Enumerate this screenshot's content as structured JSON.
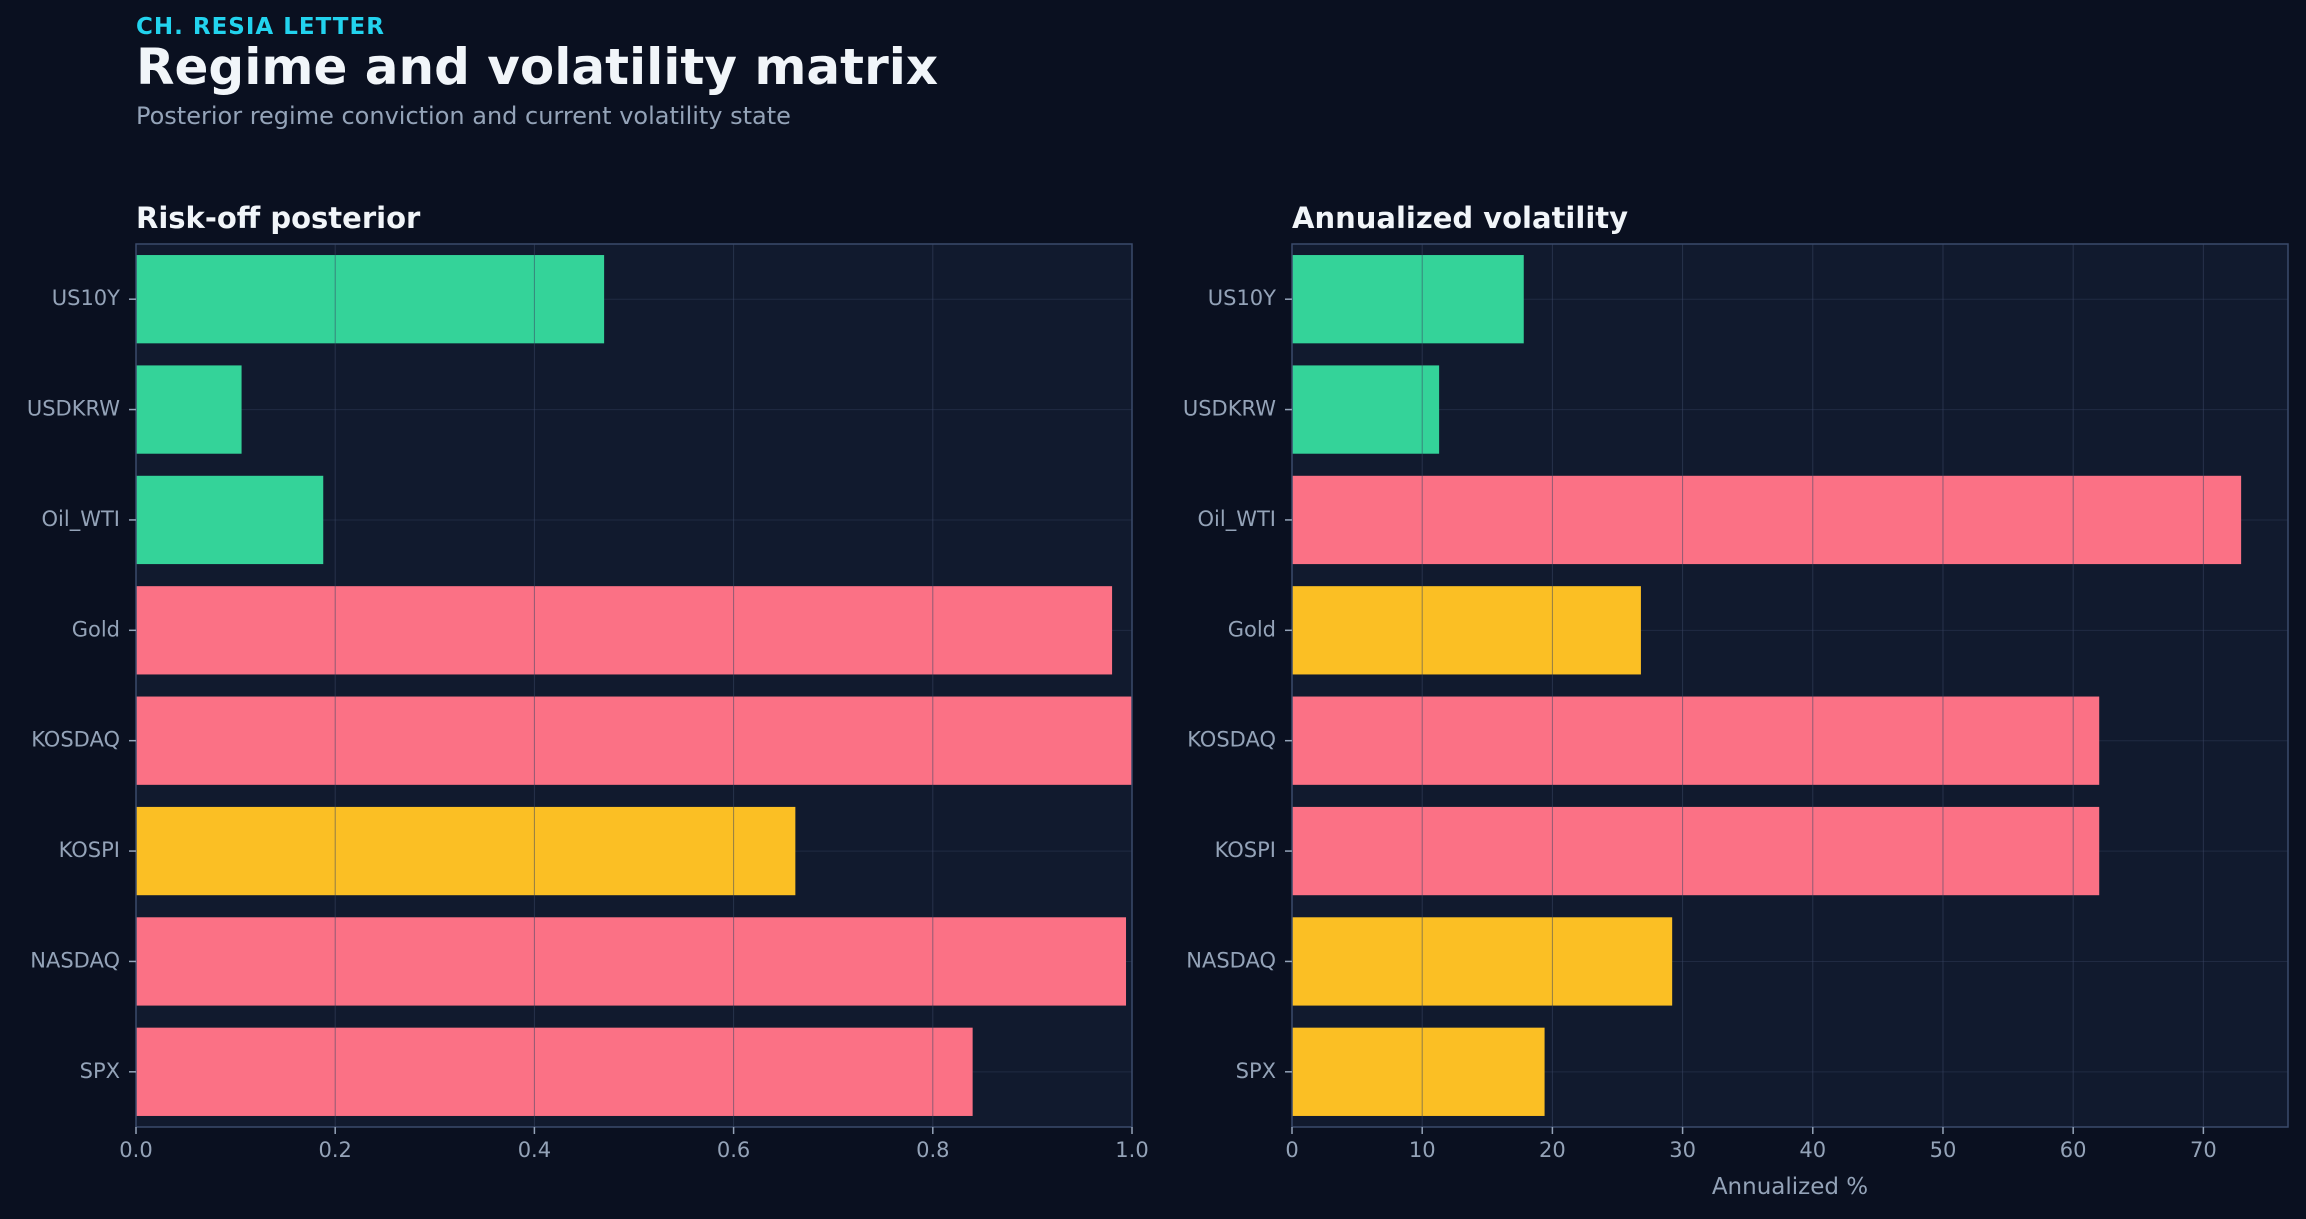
{
  "header": {
    "eyebrow": "CH. RESIA LETTER",
    "title": "Regime and volatility matrix",
    "subtitle": "Posterior regime conviction and current volatility state"
  },
  "colors": {
    "green": "#34d399",
    "red": "#fb7185",
    "yellow": "#fbbf24",
    "page_bg": "#0a1020",
    "panel_bg": "#111a2e",
    "grid": "#2a3550"
  },
  "chart_data": [
    {
      "type": "bar",
      "orientation": "horizontal",
      "title": "Risk-off posterior",
      "xlabel": "",
      "ylabel": "",
      "xlim": [
        0,
        1.0
      ],
      "xticks": [
        "0.0",
        "0.2",
        "0.4",
        "0.6",
        "0.8",
        "1.0"
      ],
      "xtick_values": [
        0,
        0.2,
        0.4,
        0.6,
        0.8,
        1.0
      ],
      "grid": true,
      "categories": [
        "US10Y",
        "USDKRW",
        "Oil_WTI",
        "Gold",
        "KOSDAQ",
        "KOSPI",
        "NASDAQ",
        "SPX"
      ],
      "values": [
        0.47,
        0.106,
        0.188,
        0.98,
        1.0,
        0.662,
        0.994,
        0.84
      ],
      "bar_colors": [
        "green",
        "green",
        "green",
        "red",
        "red",
        "yellow",
        "red",
        "red"
      ]
    },
    {
      "type": "bar",
      "orientation": "horizontal",
      "title": "Annualized volatility",
      "xlabel": "Annualized %",
      "ylabel": "",
      "xlim": [
        0,
        76.5
      ],
      "xticks": [
        "0",
        "10",
        "20",
        "30",
        "40",
        "50",
        "60",
        "70"
      ],
      "xtick_values": [
        0,
        10,
        20,
        30,
        40,
        50,
        60,
        70
      ],
      "grid": true,
      "categories": [
        "US10Y",
        "USDKRW",
        "Oil_WTI",
        "Gold",
        "KOSDAQ",
        "KOSPI",
        "NASDAQ",
        "SPX"
      ],
      "values": [
        17.8,
        11.3,
        72.9,
        26.8,
        62.0,
        62.0,
        29.2,
        19.4
      ],
      "bar_colors": [
        "green",
        "green",
        "red",
        "yellow",
        "red",
        "red",
        "yellow",
        "yellow"
      ]
    }
  ]
}
